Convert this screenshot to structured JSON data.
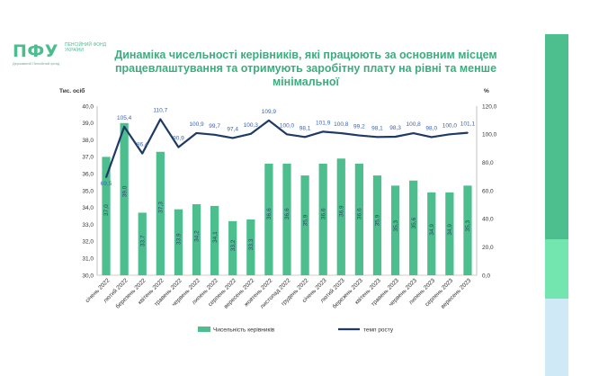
{
  "logo": {
    "mark": "ПФУ",
    "text": "ПЕНСІЙНИЙ ФОНД УКРАЇНИ",
    "sub": "Державний Пенсійний фонд"
  },
  "title": "Динаміка чисельності керівників, які працюють за основним місцем працевлаштування та отримують заробітну плату на рівні та менше мінімальної",
  "colors": {
    "bar": "#4dbf8f",
    "line": "#1f3a64",
    "title": "#3dac7e",
    "accent_dark": "#4dbf8f",
    "accent_mid": "#72e6ae",
    "accent_light": "#cfe9f7"
  },
  "chart_data": {
    "type": "bar",
    "categories": [
      "січень 2022",
      "лютий 2022",
      "березень 2022",
      "квітень 2022",
      "травень 2022",
      "червень 2022",
      "липень 2022",
      "серпень 2022",
      "вересень 2022",
      "жовтень 2022",
      "листопад 2022",
      "грудень 2022",
      "січень 2023",
      "лютий 2023",
      "березень 2023",
      "квітень 2023",
      "травень 2023",
      "червень 2023",
      "липень 2023",
      "серпень 2023",
      "вересень 2023"
    ],
    "series": [
      {
        "name": "Чисельність керівників",
        "type": "bar",
        "axis": "left",
        "values": [
          37.0,
          39.0,
          33.7,
          37.3,
          33.9,
          34.2,
          34.1,
          33.2,
          33.3,
          36.6,
          36.6,
          35.9,
          36.6,
          36.9,
          36.6,
          35.9,
          35.3,
          35.6,
          34.9,
          34.9,
          35.3
        ],
        "labels": [
          "37,0",
          "39,0",
          "33,7",
          "37,3",
          "33,9",
          "34,2",
          "34,1",
          "33,2",
          "33,3",
          "36,6",
          "36,6",
          "35,9",
          "36,6",
          "36,9",
          "36,6",
          "35,9",
          "35,3",
          "35,6",
          "34,9",
          "34,9",
          "35,3"
        ]
      },
      {
        "name": "темп росту",
        "type": "line",
        "axis": "right",
        "values": [
          69.5,
          105.4,
          86.4,
          110.7,
          90.9,
          100.9,
          99.7,
          97.4,
          100.3,
          109.9,
          100.0,
          98.1,
          101.9,
          100.8,
          99.2,
          98.1,
          98.3,
          100.8,
          98.0,
          100.0,
          101.1
        ],
        "labels": [
          "69,5",
          "105,4",
          "86,4",
          "110,7",
          "90,9",
          "100,9",
          "99,7",
          "97,4",
          "100,3",
          "109,9",
          "100,0",
          "98,1",
          "101,9",
          "100,8",
          "99,2",
          "98,1",
          "98,3",
          "100,8",
          "98,0",
          "100,0",
          "101,1"
        ]
      }
    ],
    "ylabel": "Тис. осіб",
    "y2label": "%",
    "ylim": [
      30.0,
      40.0
    ],
    "y2lim": [
      0,
      120
    ],
    "yticks": [
      "30,0",
      "31,0",
      "32,0",
      "33,0",
      "34,0",
      "35,0",
      "36,0",
      "37,0",
      "38,0",
      "39,0",
      "40,0"
    ],
    "y2ticks": [
      "0,0",
      "20,0",
      "40,0",
      "60,0",
      "80,0",
      "100,0",
      "120,0"
    ],
    "legend_position": "bottom",
    "grid": false
  }
}
